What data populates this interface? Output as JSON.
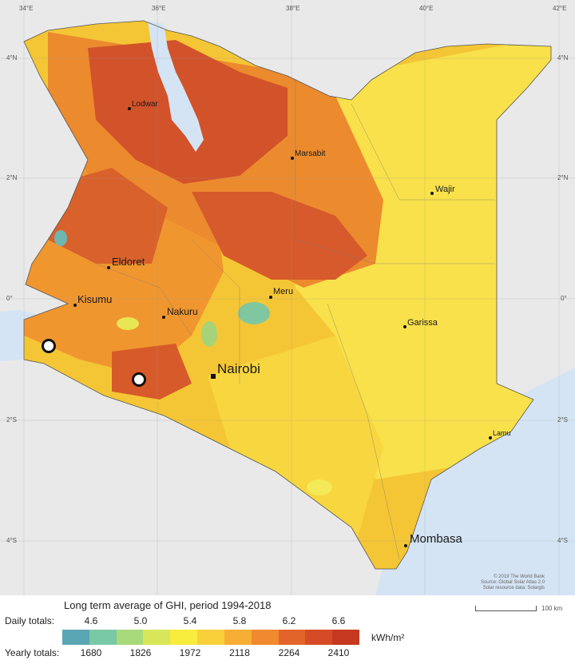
{
  "map": {
    "lon_ticks": [
      "34°E",
      "36°E",
      "38°E",
      "40°E",
      "42°E"
    ],
    "lat_ticks_left": [
      "4°N",
      "2°N",
      "0°",
      "2°S",
      "4°S"
    ],
    "lat_ticks_right": [
      "4°N",
      "2°N",
      "0°",
      "2°S",
      "4°S"
    ],
    "cities": [
      {
        "name": "Lodwar"
      },
      {
        "name": "Marsabit"
      },
      {
        "name": "Wajir"
      },
      {
        "name": "Eldoret"
      },
      {
        "name": "Kisumu"
      },
      {
        "name": "Meru"
      },
      {
        "name": "Nakuru"
      },
      {
        "name": "Garissa"
      },
      {
        "name": "Nairobi"
      },
      {
        "name": "Lamu"
      },
      {
        "name": "Mombasa"
      }
    ],
    "credits": [
      "© 2019 The World Bank",
      "Source: Global Solar Atlas 2.0",
      "Solar resource data: Solargis"
    ],
    "scale_label": "100 km"
  },
  "legend": {
    "title": "Long term average of GHI, period 1994-2018",
    "daily_label": "Daily totals:",
    "yearly_label": "Yearly totals:",
    "daily_values": [
      "4.6",
      "5.0",
      "5.4",
      "5.8",
      "6.2",
      "6.6"
    ],
    "yearly_values": [
      "1680",
      "1826",
      "1972",
      "2118",
      "2264",
      "2410"
    ],
    "unit": "kWh/m²",
    "colors": [
      "#5aa6b4",
      "#79c9a6",
      "#a8d97a",
      "#d8e65a",
      "#f8ec3c",
      "#f9d03a",
      "#f6ae34",
      "#ef8a2e",
      "#e3642a",
      "#d44b26",
      "#c4391f"
    ]
  },
  "colors": {
    "water": "#d5e4f4",
    "background": "#e9e9e9",
    "land_base": "#f4c635"
  }
}
